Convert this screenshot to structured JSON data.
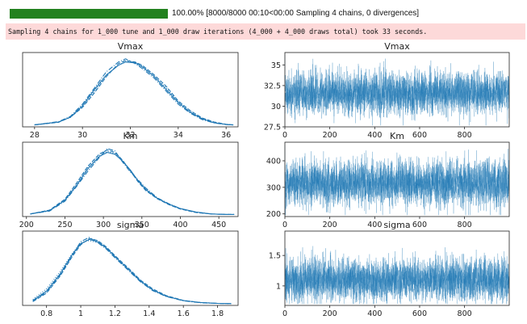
{
  "progress": {
    "fraction": 1.0,
    "text": "100.00% [8000/8000 00:10<00:00 Sampling 4 chains, 0 divergences]",
    "bar_color": "#23811f"
  },
  "log": {
    "message": "Sampling 4 chains for 1_000 tune and 1_000 draw iterations (4_000 + 4_000 draws total) took 33 seconds.",
    "background": "#fdd9d9"
  },
  "plot_color": "#1f77b4",
  "chart_data": [
    {
      "type": "line",
      "panel": "Vmax-posterior",
      "title": "Vmax",
      "xlim": [
        27.5,
        36.5
      ],
      "xticks": [
        28,
        30,
        32,
        34,
        36
      ],
      "series": [
        {
          "x": [
            28,
            29,
            29.5,
            30,
            30.5,
            31,
            31.5,
            31.8,
            32.2,
            32.5,
            33,
            33.5,
            34,
            34.5,
            35,
            35.5,
            36,
            36.3
          ],
          "y": [
            0.002,
            0.02,
            0.05,
            0.12,
            0.22,
            0.31,
            0.37,
            0.39,
            0.385,
            0.36,
            0.3,
            0.22,
            0.14,
            0.08,
            0.04,
            0.015,
            0.005,
            0.002
          ]
        },
        {
          "x": [
            28,
            29,
            29.5,
            30,
            30.5,
            31,
            31.5,
            31.8,
            32.2,
            32.5,
            33,
            33.5,
            34,
            34.5,
            35,
            35.5,
            36,
            36.3
          ],
          "y": [
            0.002,
            0.018,
            0.05,
            0.11,
            0.2,
            0.3,
            0.38,
            0.4,
            0.39,
            0.37,
            0.31,
            0.24,
            0.15,
            0.09,
            0.045,
            0.02,
            0.006,
            0.002
          ]
        },
        {
          "x": [
            28,
            29,
            29.5,
            30,
            30.5,
            31,
            31.5,
            31.8,
            32.2,
            32.5,
            33,
            33.5,
            34,
            34.5,
            35,
            35.5,
            36,
            36.3
          ],
          "y": [
            0.003,
            0.022,
            0.055,
            0.13,
            0.23,
            0.33,
            0.39,
            0.41,
            0.38,
            0.35,
            0.29,
            0.21,
            0.13,
            0.075,
            0.035,
            0.014,
            0.004,
            0.002
          ]
        },
        {
          "x": [
            28,
            29,
            29.5,
            30,
            30.5,
            31,
            31.5,
            31.8,
            32.2,
            32.5,
            33,
            33.5,
            34,
            34.5,
            35,
            35.5,
            36,
            36.3
          ],
          "y": [
            0.002,
            0.02,
            0.048,
            0.115,
            0.21,
            0.31,
            0.37,
            0.395,
            0.39,
            0.365,
            0.3,
            0.23,
            0.145,
            0.085,
            0.04,
            0.016,
            0.005,
            0.002
          ]
        }
      ]
    },
    {
      "type": "line",
      "panel": "Vmax-trace",
      "title": "Vmax",
      "xlim": [
        0,
        999
      ],
      "ylim": [
        27.5,
        36.5
      ],
      "xticks": [
        0,
        200,
        400,
        600,
        800
      ],
      "yticks": [
        27.5,
        30.0,
        32.5,
        35.0
      ],
      "mean": 31.6,
      "spread": 1.25
    },
    {
      "type": "line",
      "panel": "Km-posterior",
      "title": "Km",
      "xlim": [
        195,
        475
      ],
      "xticks": [
        200,
        250,
        300,
        350,
        400,
        450
      ],
      "series": [
        {
          "x": [
            205,
            230,
            250,
            265,
            280,
            295,
            305,
            315,
            325,
            335,
            345,
            355,
            370,
            385,
            400,
            420,
            440,
            460,
            470
          ],
          "y": [
            0.0002,
            0.0009,
            0.003,
            0.006,
            0.0095,
            0.012,
            0.0128,
            0.0124,
            0.011,
            0.0092,
            0.007,
            0.0052,
            0.0034,
            0.0022,
            0.0013,
            0.0006,
            0.0002,
            0.0001,
            0.0001
          ]
        },
        {
          "x": [
            205,
            230,
            250,
            265,
            280,
            295,
            305,
            315,
            325,
            335,
            345,
            355,
            370,
            385,
            400,
            420,
            440,
            460,
            470
          ],
          "y": [
            0.0002,
            0.001,
            0.0032,
            0.0065,
            0.01,
            0.0125,
            0.0133,
            0.0128,
            0.0112,
            0.009,
            0.0068,
            0.005,
            0.0033,
            0.0021,
            0.0012,
            0.0005,
            0.0002,
            0.0001,
            0.0001
          ]
        },
        {
          "x": [
            205,
            230,
            250,
            265,
            280,
            295,
            305,
            315,
            325,
            335,
            345,
            355,
            370,
            385,
            400,
            420,
            440,
            460,
            470
          ],
          "y": [
            0.0002,
            0.0008,
            0.0028,
            0.0058,
            0.009,
            0.0118,
            0.0136,
            0.0131,
            0.0108,
            0.0088,
            0.0072,
            0.0055,
            0.0035,
            0.0023,
            0.0013,
            0.0006,
            0.0002,
            0.0001,
            0.0001
          ]
        },
        {
          "x": [
            205,
            230,
            250,
            265,
            280,
            295,
            305,
            315,
            325,
            335,
            345,
            355,
            370,
            385,
            400,
            420,
            440,
            460,
            470
          ],
          "y": [
            0.0002,
            0.0009,
            0.003,
            0.0062,
            0.0097,
            0.0122,
            0.013,
            0.0126,
            0.011,
            0.0091,
            0.0071,
            0.0053,
            0.0034,
            0.0022,
            0.0013,
            0.0006,
            0.0002,
            0.0001,
            0.0001
          ]
        }
      ]
    },
    {
      "type": "line",
      "panel": "Km-trace",
      "title": "Km",
      "xlim": [
        0,
        999
      ],
      "ylim": [
        190,
        470
      ],
      "xticks": [
        0,
        200,
        400,
        600,
        800
      ],
      "yticks": [
        200,
        300,
        400
      ],
      "mean": 315,
      "spread": 42
    },
    {
      "type": "line",
      "panel": "sigma-posterior",
      "title": "sigma",
      "xlim": [
        0.66,
        1.92
      ],
      "xticks": [
        0.8,
        1.0,
        1.2,
        1.4,
        1.6,
        1.8
      ],
      "series": [
        {
          "x": [
            0.72,
            0.8,
            0.88,
            0.95,
            1.0,
            1.05,
            1.1,
            1.15,
            1.2,
            1.28,
            1.35,
            1.42,
            1.5,
            1.6,
            1.7,
            1.8,
            1.88
          ],
          "y": [
            0.15,
            0.6,
            1.4,
            2.3,
            2.8,
            3.0,
            2.9,
            2.6,
            2.2,
            1.6,
            1.05,
            0.65,
            0.35,
            0.15,
            0.06,
            0.02,
            0.01
          ]
        },
        {
          "x": [
            0.72,
            0.8,
            0.88,
            0.95,
            1.0,
            1.05,
            1.1,
            1.15,
            1.2,
            1.28,
            1.35,
            1.42,
            1.5,
            1.6,
            1.7,
            1.8,
            1.88
          ],
          "y": [
            0.1,
            0.5,
            1.3,
            2.2,
            2.75,
            3.05,
            2.95,
            2.65,
            2.25,
            1.65,
            1.1,
            0.7,
            0.38,
            0.16,
            0.06,
            0.02,
            0.01
          ]
        },
        {
          "x": [
            0.72,
            0.8,
            0.88,
            0.95,
            1.0,
            1.05,
            1.1,
            1.15,
            1.2,
            1.28,
            1.35,
            1.42,
            1.5,
            1.6,
            1.7,
            1.8,
            1.88
          ],
          "y": [
            0.12,
            0.55,
            1.35,
            2.25,
            2.9,
            3.1,
            2.85,
            2.55,
            2.15,
            1.55,
            1.02,
            0.62,
            0.34,
            0.14,
            0.05,
            0.02,
            0.01
          ]
        },
        {
          "x": [
            0.72,
            0.8,
            0.88,
            0.95,
            1.0,
            1.05,
            1.1,
            1.15,
            1.2,
            1.28,
            1.35,
            1.42,
            1.5,
            1.6,
            1.7,
            1.8,
            1.88
          ],
          "y": [
            0.2,
            0.7,
            1.5,
            2.35,
            2.85,
            2.95,
            2.85,
            2.6,
            2.2,
            1.6,
            1.08,
            0.66,
            0.36,
            0.15,
            0.06,
            0.02,
            0.01
          ]
        }
      ]
    },
    {
      "type": "line",
      "panel": "sigma-trace",
      "title": "sigma",
      "xlim": [
        0,
        999
      ],
      "ylim": [
        0.68,
        1.9
      ],
      "xticks": [
        0,
        200,
        400,
        600,
        800
      ],
      "yticks": [
        1.0,
        1.5
      ],
      "mean": 1.1,
      "spread": 0.17
    }
  ]
}
